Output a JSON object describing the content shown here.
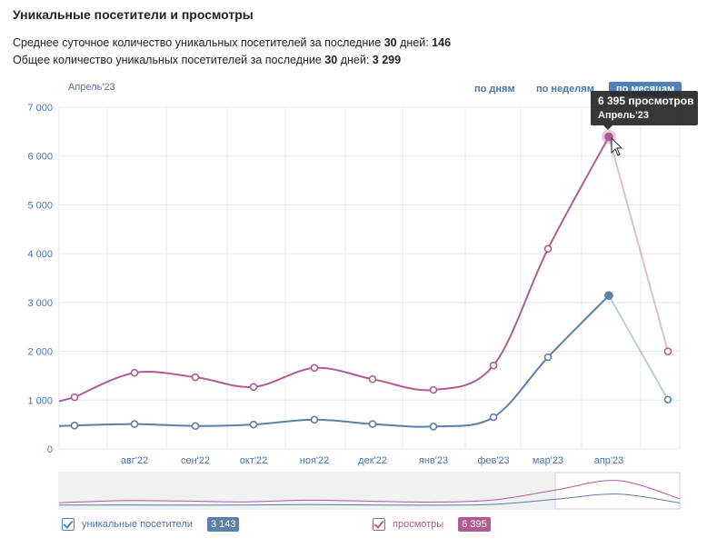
{
  "title": "Уникальные посетители и просмотры",
  "stats": {
    "line1_prefix": "Среднее суточное количество уникальных посетителей за последние ",
    "line1_days": "30",
    "line1_mid": " дней: ",
    "line1_value": "146",
    "line2_prefix": "Общее количество уникальных посетителей за последние ",
    "line2_days": "30",
    "line2_mid": " дней: ",
    "line2_value": "3 299"
  },
  "period_label": "Апрель'23",
  "tabs": {
    "days": "по дням",
    "weeks": "по неделям",
    "months": "по месяцам"
  },
  "tooltip": {
    "value": "6 395 просмотров",
    "date": "Апрель'23"
  },
  "legend": {
    "visitors_label": "уникальные посетители",
    "visitors_value": "3 143",
    "views_label": "просмотры",
    "views_value": "6 395"
  },
  "colors": {
    "visitors": "#5b7fa6",
    "views": "#b05c92",
    "grid": "#e7e8ec",
    "axis_text": "#4a76a8"
  },
  "chart_data": {
    "type": "line",
    "title": "Уникальные посетители и просмотры",
    "ylim": [
      0,
      7000
    ],
    "yticks": [
      "0",
      "1 000",
      "2 000",
      "3 000",
      "4 000",
      "5 000",
      "6 000",
      "7 000"
    ],
    "ytick_values": [
      0,
      1000,
      2000,
      3000,
      4000,
      5000,
      6000,
      7000
    ],
    "xtick_labels": [
      "авг'22",
      "сен'22",
      "окт'22",
      "ноя'22",
      "дек'22",
      "янв'23",
      "фев'23",
      "мар'23",
      "апр'23"
    ],
    "series": [
      {
        "name": "просмотры",
        "values": [
          1060,
          1560,
          1470,
          1270,
          1660,
          1430,
          1210,
          1710,
          4100,
          6395,
          2000
        ]
      },
      {
        "name": "уникальные посетители",
        "values": [
          480,
          510,
          470,
          500,
          600,
          510,
          460,
          650,
          1880,
          3143,
          1010
        ]
      }
    ]
  }
}
